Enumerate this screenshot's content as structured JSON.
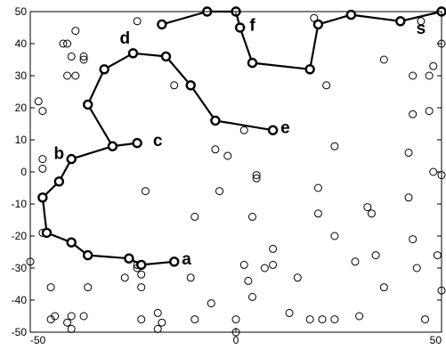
{
  "chart_data": {
    "type": "scatter",
    "title": "",
    "xlabel": "",
    "ylabel": "",
    "xlim": [
      -50,
      50
    ],
    "ylim": [
      -50,
      50
    ],
    "grid": false,
    "x_ticks": [
      -50,
      0,
      50
    ],
    "y_ticks": [
      -50,
      -40,
      -30,
      -20,
      -10,
      0,
      10,
      20,
      30,
      40,
      50
    ],
    "scatter_points": [
      [
        -39,
        44
      ],
      [
        -42,
        40
      ],
      [
        -41,
        40
      ],
      [
        -37,
        36
      ],
      [
        -37,
        35
      ],
      [
        -41,
        30
      ],
      [
        -39,
        30
      ],
      [
        -24,
        47
      ],
      [
        -15,
        27
      ],
      [
        -40,
        36
      ],
      [
        -48,
        22
      ],
      [
        -47,
        19
      ],
      [
        -47,
        4
      ],
      [
        -47,
        1
      ],
      [
        -22,
        -6
      ],
      [
        -10,
        -14
      ],
      [
        -5,
        7
      ],
      [
        -2,
        5
      ],
      [
        -4,
        -6
      ],
      [
        5,
        -1
      ],
      [
        5,
        -2
      ],
      [
        4,
        -14
      ],
      [
        2,
        13
      ],
      [
        22,
        27
      ],
      [
        24,
        8
      ],
      [
        36,
        35
      ],
      [
        45,
        47
      ],
      [
        43,
        30
      ],
      [
        47,
        30
      ],
      [
        48,
        33
      ],
      [
        47,
        19
      ],
      [
        48,
        0
      ],
      [
        43,
        18
      ],
      [
        42,
        6
      ],
      [
        50,
        40
      ],
      [
        50,
        -1
      ],
      [
        20,
        -5
      ],
      [
        20,
        -13
      ],
      [
        24,
        -20
      ],
      [
        32,
        -11
      ],
      [
        33,
        -13
      ],
      [
        42,
        -8
      ],
      [
        43,
        -21
      ],
      [
        9,
        -24
      ],
      [
        9,
        -29
      ],
      [
        7,
        -30
      ],
      [
        2,
        -29
      ],
      [
        15,
        -33
      ],
      [
        3,
        -34
      ],
      [
        4,
        -39
      ],
      [
        -11,
        -33
      ],
      [
        -23,
        -32
      ],
      [
        -27,
        -33
      ],
      [
        -24,
        -29
      ],
      [
        -24,
        -30
      ],
      [
        -23,
        -36
      ],
      [
        -36,
        -36
      ],
      [
        -45,
        -36
      ],
      [
        -50,
        -28
      ],
      [
        -47,
        -19
      ],
      [
        -41,
        -47
      ],
      [
        -40,
        -45
      ],
      [
        -44,
        -45
      ],
      [
        -45,
        -46
      ],
      [
        -37,
        -45
      ],
      [
        -23,
        -46
      ],
      [
        -18,
        -47
      ],
      [
        -19,
        -44
      ],
      [
        -19,
        -49
      ],
      [
        -10,
        -46
      ],
      [
        -6,
        -41
      ],
      [
        0,
        -46
      ],
      [
        0,
        -50
      ],
      [
        13,
        -44
      ],
      [
        18,
        -46
      ],
      [
        21,
        -46
      ],
      [
        24,
        -46
      ],
      [
        30,
        -45
      ],
      [
        29,
        -28
      ],
      [
        34,
        -26
      ],
      [
        36,
        -36
      ],
      [
        46,
        -46
      ],
      [
        44,
        -30
      ],
      [
        49,
        -26
      ],
      [
        50,
        -37
      ],
      [
        -40,
        -49
      ],
      [
        19,
        48
      ]
    ],
    "path": [
      [
        -15,
        -28
      ],
      [
        -23,
        -29
      ],
      [
        -26,
        -27
      ],
      [
        -36,
        -26
      ],
      [
        -40,
        -22
      ],
      [
        -46,
        -19
      ],
      [
        -47,
        -8
      ],
      [
        -43,
        -3
      ],
      [
        -40,
        4
      ],
      [
        -30,
        8
      ],
      [
        -36,
        21
      ],
      [
        -32,
        32
      ],
      [
        -25,
        37
      ],
      [
        -17,
        36
      ],
      [
        -11,
        27
      ],
      [
        -5,
        16
      ],
      [
        9,
        13
      ],
      null,
      [
        -24,
        9
      ],
      [
        -30,
        8
      ],
      null,
      [
        -18,
        46
      ],
      [
        -7,
        50
      ],
      [
        0,
        50
      ],
      [
        1,
        45
      ],
      [
        4,
        34
      ],
      [
        18,
        32
      ],
      [
        20,
        46
      ],
      [
        28,
        49
      ],
      [
        40,
        47
      ],
      [
        50,
        50
      ]
    ],
    "path_markers": [
      [
        -15,
        -28
      ],
      [
        -23,
        -29
      ],
      [
        -26,
        -27
      ],
      [
        -36,
        -26
      ],
      [
        -40,
        -22
      ],
      [
        -46,
        -19
      ],
      [
        -47,
        -8
      ],
      [
        -43,
        -3
      ],
      [
        -40,
        4
      ],
      [
        -30,
        8
      ],
      [
        -36,
        21
      ],
      [
        -32,
        32
      ],
      [
        -25,
        37
      ],
      [
        -17,
        36
      ],
      [
        -11,
        27
      ],
      [
        -5,
        16
      ],
      [
        9,
        13
      ],
      [
        -24,
        9
      ],
      [
        -18,
        46
      ],
      [
        -7,
        50
      ],
      [
        0,
        50
      ],
      [
        1,
        45
      ],
      [
        4,
        34
      ],
      [
        18,
        32
      ],
      [
        20,
        46
      ],
      [
        28,
        49
      ],
      [
        40,
        47
      ],
      [
        50,
        50
      ]
    ],
    "annotations": [
      {
        "text": "a",
        "x": -12,
        "y": -27
      },
      {
        "text": "b",
        "x": -43,
        "y": 6
      },
      {
        "text": "c",
        "x": -19,
        "y": 10
      },
      {
        "text": "d",
        "x": -27,
        "y": 42
      },
      {
        "text": "e",
        "x": 12,
        "y": 14
      },
      {
        "text": "f",
        "x": 4,
        "y": 46
      },
      {
        "text": "s",
        "x": 45,
        "y": 45
      }
    ]
  }
}
